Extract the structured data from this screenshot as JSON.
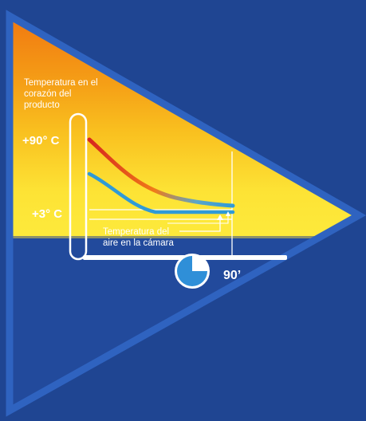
{
  "labels": {
    "core_temp_line1": "Temperatura en el",
    "core_temp_line2": "corazón del",
    "core_temp_line3": "producto",
    "hot_temp": "+90° C",
    "cold_temp": "+3° C",
    "air_temp_line1": "Temperatura del",
    "air_temp_line2": "aire en la cámara",
    "time": "90’"
  },
  "timer": {
    "elapsed_fraction": 0.75
  },
  "colors": {
    "background": "#1f4592",
    "triangle_border": "#2f63c0",
    "gradient_top": "#f07a0f",
    "gradient_mid": "#f9b81a",
    "gradient_bottom": "#fde93a",
    "core_curve_hot": "#d7261e",
    "core_curve_cool": "#2f9ad6",
    "air_curve": "#2f9ad6",
    "white": "#ffffff"
  }
}
